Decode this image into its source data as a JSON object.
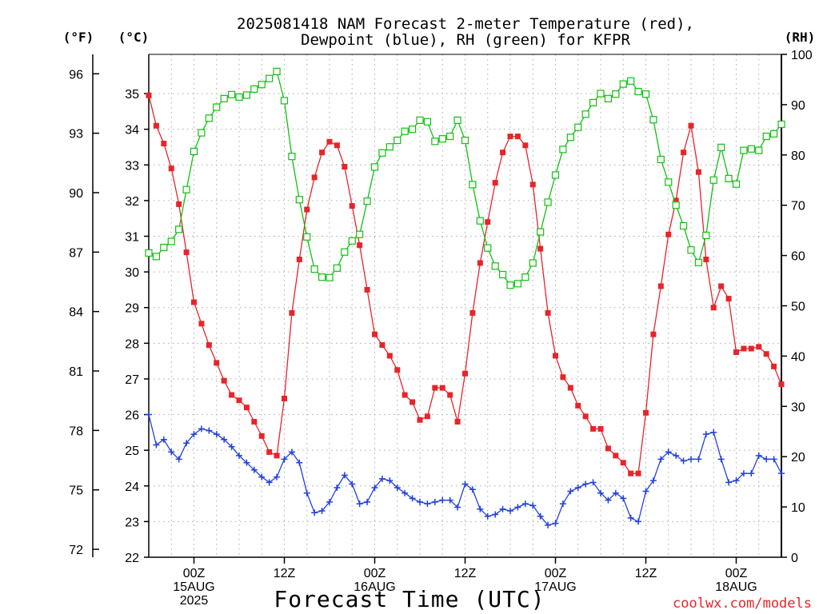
{
  "chart_data": {
    "type": "line",
    "title_line1": "2025081418 NAM Forecast 2-meter Temperature (red),",
    "title_line2": "Dewpoint (blue), RH (green) for KFPR",
    "xlabel": "Forecast Time (UTC)",
    "credit": "coolwx.com/models",
    "units": {
      "fahrenheit": "(°F)",
      "celsius": "(°C)",
      "rh": "(RH)"
    },
    "x_unit": "hours_from_2025-08-14_18Z",
    "x_range": [
      0,
      84
    ],
    "y_celsius_range": [
      22,
      36.1
    ],
    "y_rh_range": [
      0,
      100
    ],
    "fahrenheit_ticks": [
      "72",
      "75",
      "78",
      "81",
      "84",
      "87",
      "90",
      "93",
      "96"
    ],
    "celsius_ticks": [
      "22",
      "23",
      "24",
      "25",
      "26",
      "27",
      "28",
      "29",
      "30",
      "31",
      "32",
      "33",
      "34",
      "35"
    ],
    "rh_ticks": [
      "0",
      "10",
      "20",
      "30",
      "40",
      "50",
      "60",
      "70",
      "80",
      "90",
      "100"
    ],
    "x_ticks": [
      {
        "hour": 6,
        "lines": [
          "00Z",
          "15AUG",
          "2025"
        ]
      },
      {
        "hour": 18,
        "lines": [
          "12Z"
        ]
      },
      {
        "hour": 30,
        "lines": [
          "00Z",
          "16AUG"
        ]
      },
      {
        "hour": 42,
        "lines": [
          "12Z"
        ]
      },
      {
        "hour": 54,
        "lines": [
          "00Z",
          "17AUG"
        ]
      },
      {
        "hour": 66,
        "lines": [
          "12Z"
        ]
      },
      {
        "hour": 78,
        "lines": [
          "00Z",
          "18AUG"
        ]
      }
    ],
    "grid": true,
    "colors": {
      "temperature": "#e8242a",
      "dewpoint": "#2340e0",
      "rh": "#10c010"
    },
    "series": [
      {
        "name": "Temperature",
        "unit": "C",
        "x": [
          0,
          1,
          2,
          3,
          4,
          5,
          6,
          7,
          8,
          9,
          10,
          11,
          12,
          13,
          14,
          15,
          16,
          17,
          18,
          19,
          20,
          21,
          22,
          23,
          24,
          25,
          26,
          27,
          28,
          29,
          30,
          31,
          32,
          33,
          34,
          35,
          36,
          37,
          38,
          39,
          40,
          41,
          42,
          43,
          44,
          45,
          46,
          47,
          48,
          49,
          50,
          51,
          52,
          53,
          54,
          55,
          56,
          57,
          58,
          59,
          60,
          61,
          62,
          63,
          64,
          65,
          66,
          67,
          68,
          69,
          70,
          71,
          72,
          73,
          74,
          75,
          76,
          77,
          78,
          79,
          80,
          81,
          82,
          83,
          84
        ],
        "values": [
          34.95,
          34.1,
          33.6,
          32.9,
          31.9,
          30.55,
          29.15,
          28.55,
          27.95,
          27.45,
          26.95,
          26.55,
          26.4,
          26.2,
          25.8,
          25.4,
          24.95,
          24.85,
          26.45,
          28.85,
          30.35,
          31.75,
          32.65,
          33.35,
          33.65,
          33.55,
          32.95,
          31.85,
          30.75,
          29.5,
          28.25,
          27.95,
          27.65,
          27.25,
          26.55,
          26.35,
          25.85,
          25.95,
          26.75,
          26.75,
          26.55,
          25.8,
          27.15,
          28.85,
          30.25,
          31.4,
          32.5,
          33.35,
          33.8,
          33.8,
          33.55,
          32.45,
          30.65,
          28.85,
          27.65,
          27.05,
          26.75,
          26.25,
          25.95,
          25.6,
          25.6,
          25.05,
          24.85,
          24.65,
          24.35,
          24.35,
          26.05,
          28.25,
          29.6,
          31.05,
          32.0,
          33.35,
          34.1,
          32.8,
          30.35,
          29.0,
          29.6,
          29.25,
          27.75,
          27.85,
          27.85,
          27.9,
          27.7,
          27.35,
          26.85
        ]
      },
      {
        "name": "Dewpoint",
        "unit": "C",
        "x": [
          0,
          1,
          2,
          3,
          4,
          5,
          6,
          7,
          8,
          9,
          10,
          11,
          12,
          13,
          14,
          15,
          16,
          17,
          18,
          19,
          20,
          21,
          22,
          23,
          24,
          25,
          26,
          27,
          28,
          29,
          30,
          31,
          32,
          33,
          34,
          35,
          36,
          37,
          38,
          39,
          40,
          41,
          42,
          43,
          44,
          45,
          46,
          47,
          48,
          49,
          50,
          51,
          52,
          53,
          54,
          55,
          56,
          57,
          58,
          59,
          60,
          61,
          62,
          63,
          64,
          65,
          66,
          67,
          68,
          69,
          70,
          71,
          72,
          73,
          74,
          75,
          76,
          77,
          78,
          79,
          80,
          81,
          82,
          83,
          84
        ],
        "values": [
          26.0,
          25.15,
          25.3,
          24.95,
          24.75,
          25.2,
          25.45,
          25.6,
          25.55,
          25.45,
          25.3,
          25.1,
          24.85,
          24.65,
          24.45,
          24.25,
          24.1,
          24.25,
          24.75,
          24.95,
          24.65,
          23.8,
          23.25,
          23.3,
          23.55,
          23.95,
          24.3,
          24.05,
          23.5,
          23.55,
          23.95,
          24.2,
          24.15,
          23.95,
          23.8,
          23.65,
          23.55,
          23.5,
          23.55,
          23.6,
          23.6,
          23.4,
          24.05,
          23.9,
          23.35,
          23.15,
          23.2,
          23.35,
          23.3,
          23.4,
          23.5,
          23.45,
          23.15,
          22.9,
          22.95,
          23.5,
          23.85,
          23.95,
          24.05,
          24.1,
          23.8,
          23.6,
          23.8,
          23.65,
          23.1,
          23.0,
          23.85,
          24.15,
          24.75,
          24.95,
          24.85,
          24.7,
          24.75,
          24.75,
          25.45,
          25.5,
          24.75,
          24.1,
          24.15,
          24.35,
          24.35,
          24.85,
          24.75,
          24.75,
          24.35
        ]
      },
      {
        "name": "RH",
        "unit": "%",
        "x": [
          0,
          1,
          2,
          3,
          4,
          5,
          6,
          7,
          8,
          9,
          10,
          11,
          12,
          13,
          14,
          15,
          16,
          17,
          18,
          19,
          20,
          21,
          22,
          23,
          24,
          25,
          26,
          27,
          28,
          29,
          30,
          31,
          32,
          33,
          34,
          35,
          36,
          37,
          38,
          39,
          40,
          41,
          42,
          43,
          44,
          45,
          46,
          47,
          48,
          49,
          50,
          51,
          52,
          53,
          54,
          55,
          56,
          57,
          58,
          59,
          60,
          61,
          62,
          63,
          64,
          65,
          66,
          67,
          68,
          69,
          70,
          71,
          72,
          73,
          74,
          75,
          76,
          77,
          78,
          79,
          80,
          81,
          82,
          83,
          84
        ],
        "values": [
          60.5,
          59.8,
          61.6,
          62.8,
          65.2,
          73.1,
          80.7,
          84.4,
          87.3,
          89.5,
          91.2,
          92.0,
          91.5,
          91.9,
          93.1,
          94.0,
          95.2,
          96.6,
          90.8,
          79.7,
          71.1,
          63.7,
          57.3,
          55.7,
          55.6,
          57.5,
          60.7,
          62.9,
          64.2,
          70.8,
          77.6,
          80.4,
          81.6,
          82.9,
          84.7,
          85.1,
          86.9,
          86.6,
          82.7,
          83.2,
          83.7,
          86.9,
          82.9,
          74.1,
          66.9,
          61.5,
          57.9,
          56.2,
          54.1,
          54.4,
          55.7,
          58.5,
          64.7,
          70.6,
          76.0,
          81.1,
          83.5,
          85.5,
          88.1,
          90.4,
          92.2,
          91.2,
          92.1,
          94.1,
          94.7,
          92.6,
          92.1,
          87.0,
          79.1,
          74.6,
          70.0,
          65.9,
          61.1,
          58.6,
          64.0,
          75.0,
          81.5,
          75.3,
          74.2,
          80.9,
          81.2,
          80.9,
          83.7,
          84.2,
          86.1
        ]
      }
    ]
  }
}
